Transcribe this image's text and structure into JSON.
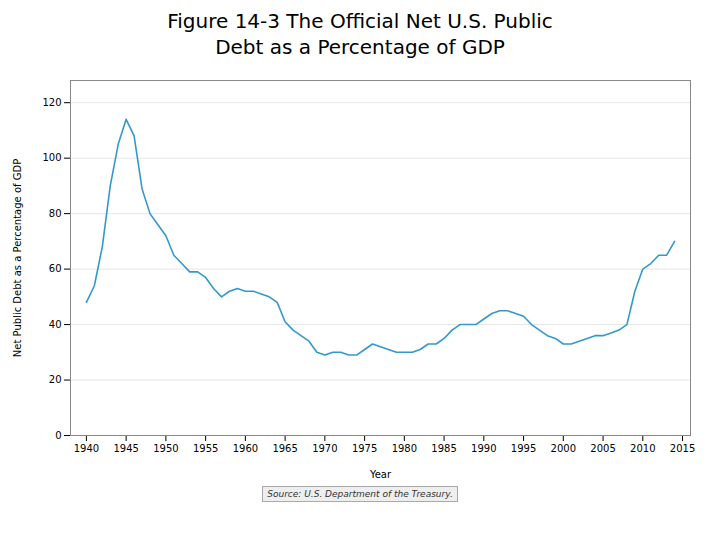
{
  "chart_data": {
    "type": "line",
    "title": "Figure 14-3  The Official Net U.S. Public",
    "subtitle": "Debt as a Percentage of GDP",
    "xlabel": "Year",
    "ylabel": "Net Public Debt as a Percentage of GDP",
    "caption": "Source: U.S. Department of the Treasury.",
    "color": "#3399cc",
    "grid": "y",
    "xlim": [
      1938,
      2016
    ],
    "xticks": [
      1940,
      1945,
      1950,
      1955,
      1960,
      1965,
      1970,
      1975,
      1980,
      1985,
      1990,
      1995,
      2000,
      2005,
      2010,
      2015
    ],
    "ylim": [
      0,
      128
    ],
    "yticks": [
      0,
      20,
      40,
      60,
      80,
      100,
      120
    ],
    "x": [
      1940,
      1941,
      1942,
      1943,
      1944,
      1945,
      1946,
      1947,
      1948,
      1949,
      1950,
      1951,
      1952,
      1953,
      1954,
      1955,
      1956,
      1957,
      1958,
      1959,
      1960,
      1961,
      1962,
      1963,
      1964,
      1965,
      1966,
      1967,
      1968,
      1969,
      1970,
      1971,
      1972,
      1973,
      1974,
      1975,
      1976,
      1977,
      1978,
      1979,
      1980,
      1981,
      1982,
      1983,
      1984,
      1985,
      1986,
      1987,
      1988,
      1989,
      1990,
      1991,
      1992,
      1993,
      1994,
      1995,
      1996,
      1997,
      1998,
      1999,
      2000,
      2001,
      2002,
      2003,
      2004,
      2005,
      2006,
      2007,
      2008,
      2009,
      2010,
      2011,
      2012,
      2013,
      2014
    ],
    "values": [
      48,
      54,
      68,
      90,
      105,
      114,
      108,
      89,
      80,
      76,
      72,
      65,
      62,
      59,
      59,
      57,
      53,
      50,
      52,
      53,
      52,
      52,
      51,
      50,
      48,
      41,
      38,
      36,
      34,
      30,
      29,
      30,
      30,
      29,
      29,
      31,
      33,
      32,
      31,
      30,
      30,
      30,
      31,
      33,
      33,
      35,
      38,
      40,
      40,
      40,
      42,
      44,
      45,
      45,
      44,
      43,
      40,
      38,
      36,
      35,
      33,
      33,
      34,
      35,
      36,
      36,
      37,
      38,
      40,
      52,
      60,
      62,
      65,
      65,
      70
    ]
  }
}
